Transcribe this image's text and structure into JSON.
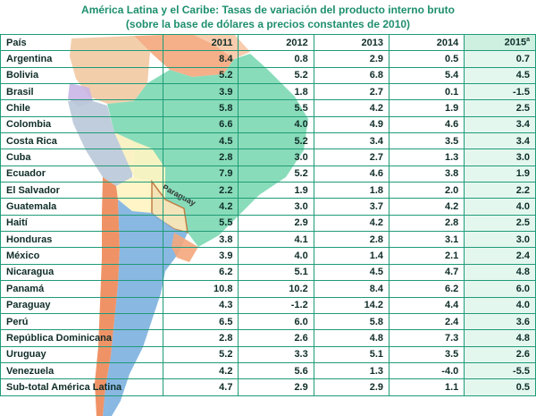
{
  "title": {
    "line1": "América Latina y el Caribe: Tasas de variación del producto interno bruto",
    "line2": "(sobre la base de dólares a precios constantes de 2010)"
  },
  "map_label": "Paraguay",
  "table": {
    "country_header": "País",
    "year_headers": [
      "2011",
      "2012",
      "2013",
      "2014",
      "2015"
    ],
    "last_header_mark": "a",
    "rows": [
      {
        "country": "Argentina",
        "values": [
          "8.4",
          "0.8",
          "2.9",
          "0.5",
          "0.7"
        ]
      },
      {
        "country": "Bolivia",
        "values": [
          "5.2",
          "5.2",
          "6.8",
          "5.4",
          "4.5"
        ]
      },
      {
        "country": "Brasil",
        "values": [
          "3.9",
          "1.8",
          "2.7",
          "0.1",
          "-1.5"
        ]
      },
      {
        "country": "Chile",
        "values": [
          "5.8",
          "5.5",
          "4.2",
          "1.9",
          "2.5"
        ]
      },
      {
        "country": "Colombia",
        "values": [
          "6.6",
          "4.0",
          "4.9",
          "4.6",
          "3.4"
        ]
      },
      {
        "country": "Costa Rica",
        "values": [
          "4.5",
          "5.2",
          "3.4",
          "3.5",
          "3.4"
        ]
      },
      {
        "country": "Cuba",
        "values": [
          "2.8",
          "3.0",
          "2.7",
          "1.3",
          "3.0"
        ]
      },
      {
        "country": "Ecuador",
        "values": [
          "7.9",
          "5.2",
          "4.6",
          "3.8",
          "1.9"
        ]
      },
      {
        "country": "El Salvador",
        "values": [
          "2.2",
          "1.9",
          "1.8",
          "2.0",
          "2.2"
        ]
      },
      {
        "country": "Guatemala",
        "values": [
          "4.2",
          "3.0",
          "3.7",
          "4.2",
          "4.0"
        ]
      },
      {
        "country": "Haití",
        "values": [
          "5.5",
          "2.9",
          "4.2",
          "2.8",
          "2.5"
        ]
      },
      {
        "country": "Honduras",
        "values": [
          "3.8",
          "4.1",
          "2.8",
          "3.1",
          "3.0"
        ]
      },
      {
        "country": "México",
        "values": [
          "3.9",
          "4.0",
          "1.4",
          "2.1",
          "2.4"
        ]
      },
      {
        "country": "Nicaragua",
        "values": [
          "6.2",
          "5.1",
          "4.5",
          "4.7",
          "4.8"
        ]
      },
      {
        "country": "Panamá",
        "values": [
          "10.8",
          "10.2",
          "8.4",
          "6.2",
          "6.0"
        ]
      },
      {
        "country": "Paraguay",
        "values": [
          "4.3",
          "-1.2",
          "14.2",
          "4.4",
          "4.0"
        ]
      },
      {
        "country": "Perú",
        "values": [
          "6.5",
          "6.0",
          "5.8",
          "2.4",
          "3.6"
        ]
      },
      {
        "country": "República Dominicana",
        "values": [
          "2.8",
          "2.6",
          "4.8",
          "7.3",
          "4.8"
        ]
      },
      {
        "country": "Uruguay",
        "values": [
          "5.2",
          "3.3",
          "5.1",
          "3.5",
          "2.6"
        ]
      },
      {
        "country": "Venezuela",
        "values": [
          "4.2",
          "5.6",
          "1.3",
          "-4.0",
          "-5.5"
        ]
      },
      {
        "country": "Sub-total América Latina",
        "values": [
          "4.7",
          "2.9",
          "2.9",
          "1.1",
          "0.5"
        ]
      }
    ]
  },
  "colors": {
    "title": "#1e8f6e",
    "grid": "#1f9b78",
    "brazil": "#7fd9b4",
    "argentina": "#7fb2e0",
    "bolivia": "#fff4c2",
    "peru": "#b9c8d8",
    "chile": "#ee8a5a",
    "venezuela": "#f4a77c",
    "colombia": "#f2c9a2"
  }
}
